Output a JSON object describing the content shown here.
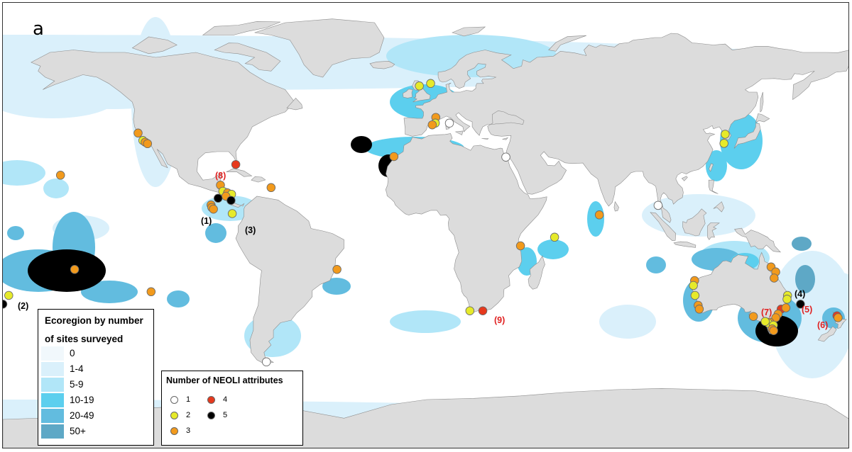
{
  "panel_label": "a",
  "colors": {
    "land": "#dcdcdc",
    "coast": "#8c8c8c",
    "ocean": "#ffffff",
    "label_black": "#000000",
    "label_red": "#e02020"
  },
  "ecoregion_legend": {
    "title_line1": "Ecoregion by number",
    "title_line2": "of sites surveyed",
    "classes": [
      {
        "label": "0",
        "color": "#f1f8fc"
      },
      {
        "label": "1-4",
        "color": "#daf0fb"
      },
      {
        "label": "5-9",
        "color": "#b1e6f8"
      },
      {
        "label": "10-19",
        "color": "#5ccfee"
      },
      {
        "label": "20-49",
        "color": "#62bcdf"
      },
      {
        "label": "50+",
        "color": "#5ea8c6"
      }
    ]
  },
  "neoli_legend": {
    "title": "Number of NEOLI attributes",
    "items": [
      {
        "value": "1",
        "color": "#ffffff"
      },
      {
        "value": "2",
        "color": "#e6ea2a"
      },
      {
        "value": "3",
        "color": "#f29a1c"
      },
      {
        "value": "4",
        "color": "#e6391d"
      },
      {
        "value": "5",
        "color": "#000000"
      }
    ]
  },
  "site_labels": [
    {
      "text": "(1)",
      "color": "black"
    },
    {
      "text": "(2)",
      "color": "black"
    },
    {
      "text": "(3)",
      "color": "black"
    },
    {
      "text": "(4)",
      "color": "black"
    },
    {
      "text": "(5)",
      "color": "red"
    },
    {
      "text": "(6)",
      "color": "red"
    },
    {
      "text": "(7)",
      "color": "red"
    },
    {
      "text": "(8)",
      "color": "red"
    },
    {
      "text": "(9)",
      "color": "red"
    }
  ],
  "sites": [
    {
      "lon": -122.5,
      "lat": 37.5,
      "neoli": 3
    },
    {
      "lon": -120.5,
      "lat": 34.5,
      "neoli": 2
    },
    {
      "lon": -119.5,
      "lat": 33.8,
      "neoli": 3
    },
    {
      "lon": -118.5,
      "lat": 33.2,
      "neoli": 3
    },
    {
      "lon": -155.5,
      "lat": 20.5,
      "neoli": 3
    },
    {
      "lon": -81.0,
      "lat": 24.8,
      "neoli": 4
    },
    {
      "lon": -87.5,
      "lat": 16.5,
      "neoli": 3
    },
    {
      "lon": -86.5,
      "lat": 14.0,
      "neoli": 2
    },
    {
      "lon": -84.5,
      "lat": 13.3,
      "neoli": 3
    },
    {
      "lon": -82.8,
      "lat": 12.8,
      "neoli": 2
    },
    {
      "lon": -85.2,
      "lat": 12.0,
      "neoli": 3
    },
    {
      "lon": -88.5,
      "lat": 11.2,
      "neoli": 5
    },
    {
      "lon": -83.0,
      "lat": 10.3,
      "neoli": 5
    },
    {
      "lon": -91.5,
      "lat": 8.5,
      "neoli": 3
    },
    {
      "lon": -91.2,
      "lat": 7.5,
      "neoli": 3
    },
    {
      "lon": -90.5,
      "lat": 6.8,
      "neoli": 3
    },
    {
      "lon": -82.5,
      "lat": 5.0,
      "neoli": 2
    },
    {
      "lon": -66.0,
      "lat": 15.5,
      "neoli": 3
    },
    {
      "lon": -149.5,
      "lat": -17.5,
      "neoli": 3
    },
    {
      "lon": -177.5,
      "lat": -28.0,
      "neoli": 2
    },
    {
      "lon": -180.0,
      "lat": -31.5,
      "neoli": 5
    },
    {
      "lon": -117.0,
      "lat": -26.5,
      "neoli": 3
    },
    {
      "lon": -38.0,
      "lat": -17.5,
      "neoli": 3
    },
    {
      "lon": -68.0,
      "lat": -54.8,
      "neoli": 1
    },
    {
      "lon": -3.0,
      "lat": 56.5,
      "neoli": 2
    },
    {
      "lon": 1.8,
      "lat": 57.5,
      "neoli": 2
    },
    {
      "lon": 4.0,
      "lat": 43.8,
      "neoli": 3
    },
    {
      "lon": 3.8,
      "lat": 41.5,
      "neoli": 2
    },
    {
      "lon": 2.5,
      "lat": 40.8,
      "neoli": 3
    },
    {
      "lon": 9.8,
      "lat": 41.5,
      "neoli": 1
    },
    {
      "lon": -13.8,
      "lat": 28.0,
      "neoli": 3
    },
    {
      "lon": 33.8,
      "lat": 27.8,
      "neoli": 1
    },
    {
      "lon": 40.0,
      "lat": -8.0,
      "neoli": 3
    },
    {
      "lon": 54.5,
      "lat": -4.5,
      "neoli": 2
    },
    {
      "lon": 73.5,
      "lat": 4.5,
      "neoli": 3
    },
    {
      "lon": 18.5,
      "lat": -34.2,
      "neoli": 2
    },
    {
      "lon": 24.0,
      "lat": -34.2,
      "neoli": 4
    },
    {
      "lon": 98.5,
      "lat": 8.3,
      "neoli": 1
    },
    {
      "lon": 127.0,
      "lat": 37.0,
      "neoli": 2
    },
    {
      "lon": 126.5,
      "lat": 33.3,
      "neoli": 2
    },
    {
      "lon": 114.0,
      "lat": -22.0,
      "neoli": 3
    },
    {
      "lon": 113.5,
      "lat": -24.0,
      "neoli": 2
    },
    {
      "lon": 114.2,
      "lat": -28.0,
      "neoli": 2
    },
    {
      "lon": 115.5,
      "lat": -32.0,
      "neoli": 3
    },
    {
      "lon": 116.0,
      "lat": -33.5,
      "neoli": 3
    },
    {
      "lon": 146.5,
      "lat": -16.5,
      "neoli": 3
    },
    {
      "lon": 148.5,
      "lat": -18.5,
      "neoli": 3
    },
    {
      "lon": 147.8,
      "lat": -21.0,
      "neoli": 3
    },
    {
      "lon": 153.5,
      "lat": -28.0,
      "neoli": 2
    },
    {
      "lon": 153.3,
      "lat": -29.5,
      "neoli": 2
    },
    {
      "lon": 150.8,
      "lat": -33.5,
      "neoli": 4
    },
    {
      "lon": 149.5,
      "lat": -35.5,
      "neoli": 3
    },
    {
      "lon": 148.5,
      "lat": -37.0,
      "neoli": 3
    },
    {
      "lon": 146.0,
      "lat": -38.8,
      "neoli": 3
    },
    {
      "lon": 145.5,
      "lat": -39.3,
      "neoli": 2
    },
    {
      "lon": 147.5,
      "lat": -40.0,
      "neoli": 2
    },
    {
      "lon": 144.0,
      "lat": -38.5,
      "neoli": 2
    },
    {
      "lon": 147.0,
      "lat": -41.5,
      "neoli": 3
    },
    {
      "lon": 147.6,
      "lat": -42.2,
      "neoli": 3
    },
    {
      "lon": 139.0,
      "lat": -36.5,
      "neoli": 3
    },
    {
      "lon": 159.0,
      "lat": -31.5,
      "neoli": 5
    },
    {
      "lon": 152.8,
      "lat": -33.0,
      "neoli": 3
    },
    {
      "lon": 174.5,
      "lat": -36.2,
      "neoli": 4
    },
    {
      "lon": 175.0,
      "lat": -37.0,
      "neoli": 3
    }
  ]
}
